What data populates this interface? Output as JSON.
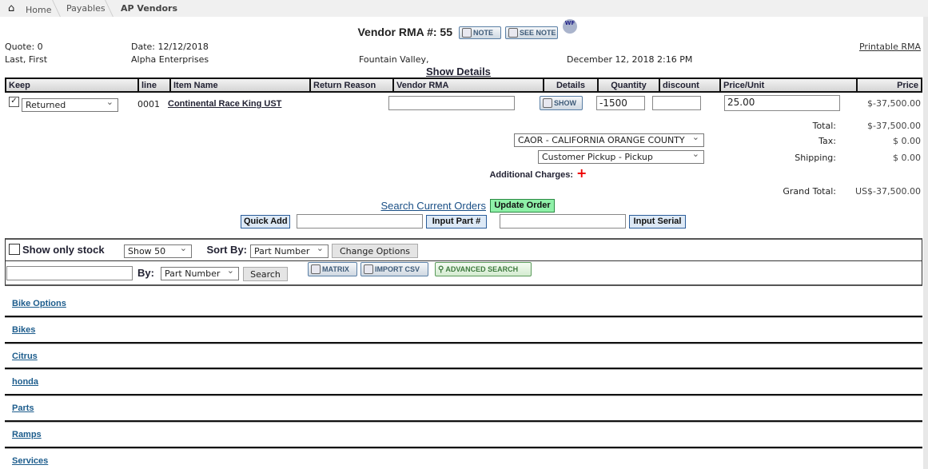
{
  "breadcrumb": {
    "home": "Home",
    "items": [
      "Payables",
      "AP Vendors"
    ]
  },
  "header": {
    "title": "Vendor RMA #: 55",
    "note_label": "NOTE",
    "see_note_label": "SEE NOTE",
    "wf_label": "WF",
    "printable": "Printable RMA"
  },
  "info": {
    "quote": "Quote: 0",
    "date": "Date: 12/12/2018",
    "name": "Last, First",
    "company": "Alpha Enterprises",
    "city": "Fountain Valley,",
    "datetime": "December 12, 2018 2:16 PM",
    "show_details": "Show Details"
  },
  "table": {
    "columns": [
      "Keep",
      "line",
      "Item Name",
      "Return Reason",
      "Vendor RMA",
      "Details",
      "Quantity",
      "discount",
      "Price/Unit",
      "Price"
    ],
    "rows": [
      {
        "keep": true,
        "status": "Returned",
        "line": "0001",
        "item": "Continental Race King UST",
        "vendor_rma": "",
        "details": "SHOW",
        "quantity": "-1500",
        "discount": "",
        "price_unit": "25.00",
        "price": "$-37,500.00"
      }
    ]
  },
  "totals": {
    "total_label": "Total:",
    "total": "$-37,500.00",
    "tax_label": "Tax:",
    "tax": "$ 0.00",
    "shipping_label": "Shipping:",
    "shipping": "$ 0.00",
    "grand_label": "Grand Total:",
    "grand": "US$-37,500.00",
    "tax_region": "CAOR - CALIFORNIA ORANGE COUNTY",
    "ship_method": "Customer Pickup - Pickup",
    "additional": "Additional Charges:"
  },
  "actions": {
    "search_orders": "Search Current Orders",
    "update_order": "Update Order",
    "quick_add": "Quick Add",
    "quick_add_value": "",
    "input_part": "Input Part #",
    "part_value": "",
    "input_serial": "Input Serial"
  },
  "filters": {
    "show_only_stock": "Show only stock",
    "show_count": "Show 50",
    "sort_by": "Sort By:",
    "sort_value": "Part Number",
    "change_options": "Change Options",
    "by": "By:",
    "by_value": "Part Number",
    "search": "Search",
    "search_value": "",
    "matrix": "MATRIX",
    "import_csv": "IMPORT CSV",
    "advanced": "ADVANCED SEARCH"
  },
  "categories": [
    "Bike Options",
    "Bikes",
    "Citrus",
    "honda",
    "Parts",
    "Ramps",
    "Services"
  ]
}
